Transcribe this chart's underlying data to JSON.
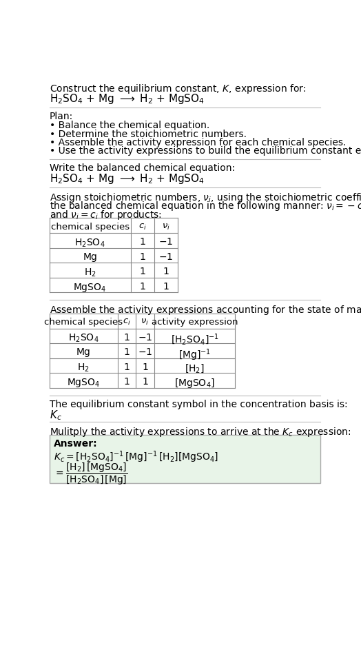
{
  "title_line1": "Construct the equilibrium constant, $K$, expression for:",
  "title_line2": "$\\mathrm{H_2SO_4}$ + Mg $\\longrightarrow$ $\\mathrm{H_2}$ + $\\mathrm{MgSO_4}$",
  "plan_header": "Plan:",
  "plan_bullets": [
    "• Balance the chemical equation.",
    "• Determine the stoichiometric numbers.",
    "• Assemble the activity expression for each chemical species.",
    "• Use the activity expressions to build the equilibrium constant expression."
  ],
  "section2_header": "Write the balanced chemical equation:",
  "section2_eq": "$\\mathrm{H_2SO_4}$ + Mg $\\longrightarrow$ $\\mathrm{H_2}$ + $\\mathrm{MgSO_4}$",
  "section3_line1": "Assign stoichiometric numbers, $\\nu_i$, using the stoichiometric coefficients, $c_i$, from",
  "section3_line2": "the balanced chemical equation in the following manner: $\\nu_i = -c_i$ for reactants",
  "section3_line3": "and $\\nu_i = c_i$ for products:",
  "table1_headers": [
    "chemical species",
    "$c_i$",
    "$\\nu_i$"
  ],
  "table1_rows": [
    [
      "$\\mathrm{H_2SO_4}$",
      "1",
      "$-1$"
    ],
    [
      "Mg",
      "1",
      "$-1$"
    ],
    [
      "$\\mathrm{H_2}$",
      "1",
      "1"
    ],
    [
      "$\\mathrm{MgSO_4}$",
      "1",
      "1"
    ]
  ],
  "section4_header": "Assemble the activity expressions accounting for the state of matter and $\\nu_i$:",
  "table2_headers": [
    "chemical species",
    "$c_i$",
    "$\\nu_i$",
    "activity expression"
  ],
  "table2_rows": [
    [
      "$\\mathrm{H_2SO_4}$",
      "1",
      "$-1$",
      "$[\\mathrm{H_2SO_4}]^{-1}$"
    ],
    [
      "Mg",
      "1",
      "$-1$",
      "$[\\mathrm{Mg}]^{-1}$"
    ],
    [
      "$\\mathrm{H_2}$",
      "1",
      "1",
      "$[\\mathrm{H_2}]$"
    ],
    [
      "$\\mathrm{MgSO_4}$",
      "1",
      "1",
      "$[\\mathrm{MgSO_4}]$"
    ]
  ],
  "section5_header": "The equilibrium constant symbol in the concentration basis is:",
  "section5_symbol": "$K_c$",
  "section6_header": "Mulitply the activity expressions to arrive at the $K_c$ expression:",
  "answer_label": "Answer:",
  "answer_eq_line1": "$K_c = [\\mathrm{H_2SO_4}]^{-1}\\,[\\mathrm{Mg}]^{-1}\\,[\\mathrm{H_2}][\\mathrm{MgSO_4}]$",
  "answer_eq_line2": "$= \\dfrac{[\\mathrm{H_2}]\\,[\\mathrm{MgSO_4}]}{[\\mathrm{H_2SO_4}]\\,[\\mathrm{Mg}]}$",
  "bg_color": "#ffffff",
  "text_color": "#000000",
  "answer_box_color": "#e8f4e8"
}
